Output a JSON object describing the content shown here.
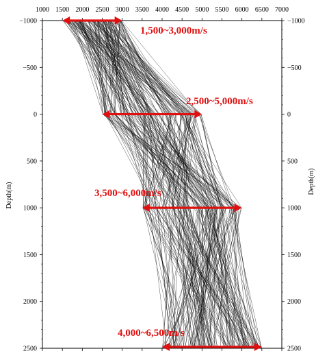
{
  "chart_data": {
    "type": "line",
    "title": "",
    "xlabel": "",
    "ylabel": "Depth(m)",
    "xlim": [
      1000,
      7000
    ],
    "ylim": [
      -1000,
      2500
    ],
    "y_inverted": true,
    "grid": false,
    "x_ticks": [
      "1000",
      "1500",
      "2000",
      "2500",
      "3000",
      "3500",
      "4000",
      "4500",
      "5000",
      "5500",
      "6000",
      "6500",
      "7000"
    ],
    "y_ticks": [
      "−1000",
      "−500",
      "0",
      "500",
      "1000",
      "1500",
      "2000",
      "2500"
    ],
    "depth_nodes": [
      -1000,
      0,
      1000,
      2500
    ],
    "velocity_ranges": [
      {
        "depth": -1000,
        "min": 1500,
        "max": 3000,
        "label": "1,500~3,000m/s"
      },
      {
        "depth": 0,
        "min": 2500,
        "max": 5000,
        "label": "2,500~5,000m/s"
      },
      {
        "depth": 1000,
        "min": 3500,
        "max": 6000,
        "label": "3,500~6,000m/s"
      },
      {
        "depth": 2500,
        "min": 4000,
        "max": 6500,
        "label": "4,000~6,500m/s"
      }
    ],
    "profile_count": 160,
    "line_color": "#000000",
    "annotation_color": "#e01010"
  }
}
